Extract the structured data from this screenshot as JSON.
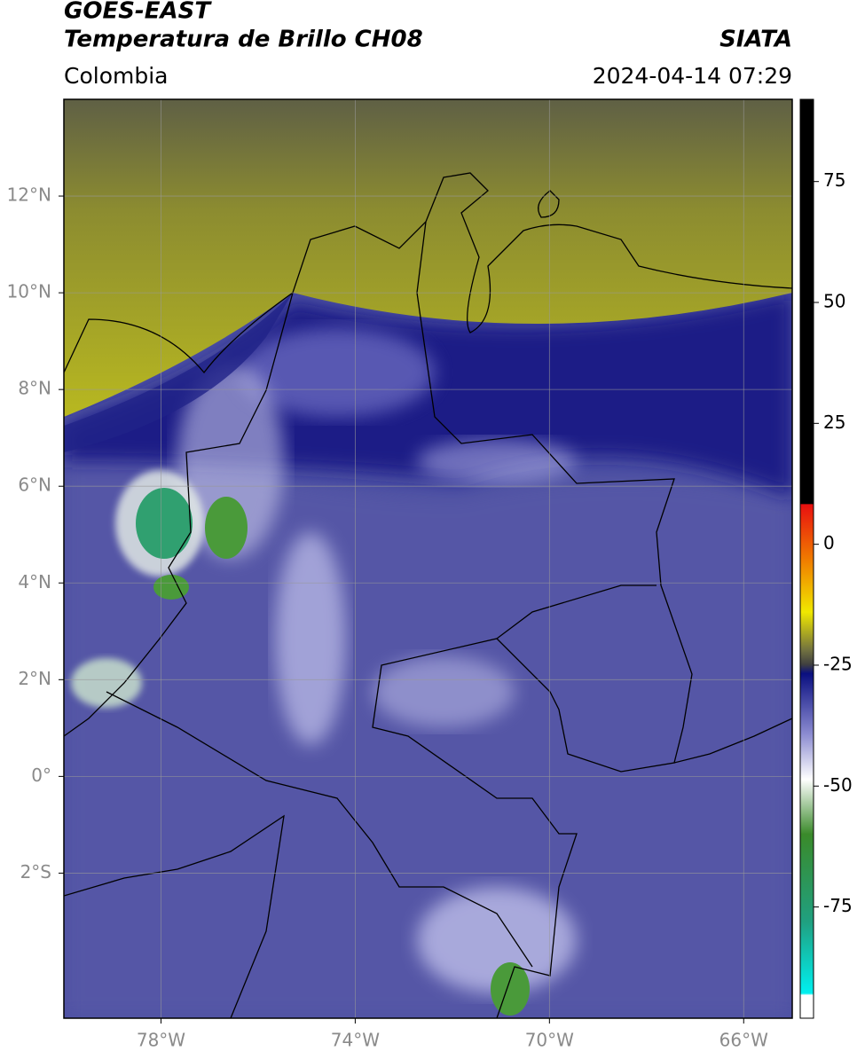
{
  "header": {
    "line1": "GOES-EAST",
    "line2": "Temperatura de Brillo CH08",
    "region": "Colombia",
    "source": "SIATA",
    "timestamp": "2024-04-14 07:29"
  },
  "map": {
    "xlim": [
      -80,
      -65
    ],
    "ylim": [
      -5,
      14
    ],
    "xticks": [
      {
        "value": -78,
        "label": "78°W"
      },
      {
        "value": -74,
        "label": "74°W"
      },
      {
        "value": -70,
        "label": "70°W"
      },
      {
        "value": -66,
        "label": "66°W"
      }
    ],
    "yticks": [
      {
        "value": 12,
        "label": "12°N"
      },
      {
        "value": 10,
        "label": "10°N"
      },
      {
        "value": 8,
        "label": "8°N"
      },
      {
        "value": 6,
        "label": "6°N"
      },
      {
        "value": 4,
        "label": "4°N"
      },
      {
        "value": 2,
        "label": "2°N"
      },
      {
        "value": 0,
        "label": "0°"
      },
      {
        "value": -2,
        "label": "2°S"
      }
    ],
    "grid": true
  },
  "colorbar": {
    "lim": [
      -98,
      92
    ],
    "ticks": [
      75,
      50,
      25,
      0,
      -25,
      -50,
      -75
    ]
  }
}
